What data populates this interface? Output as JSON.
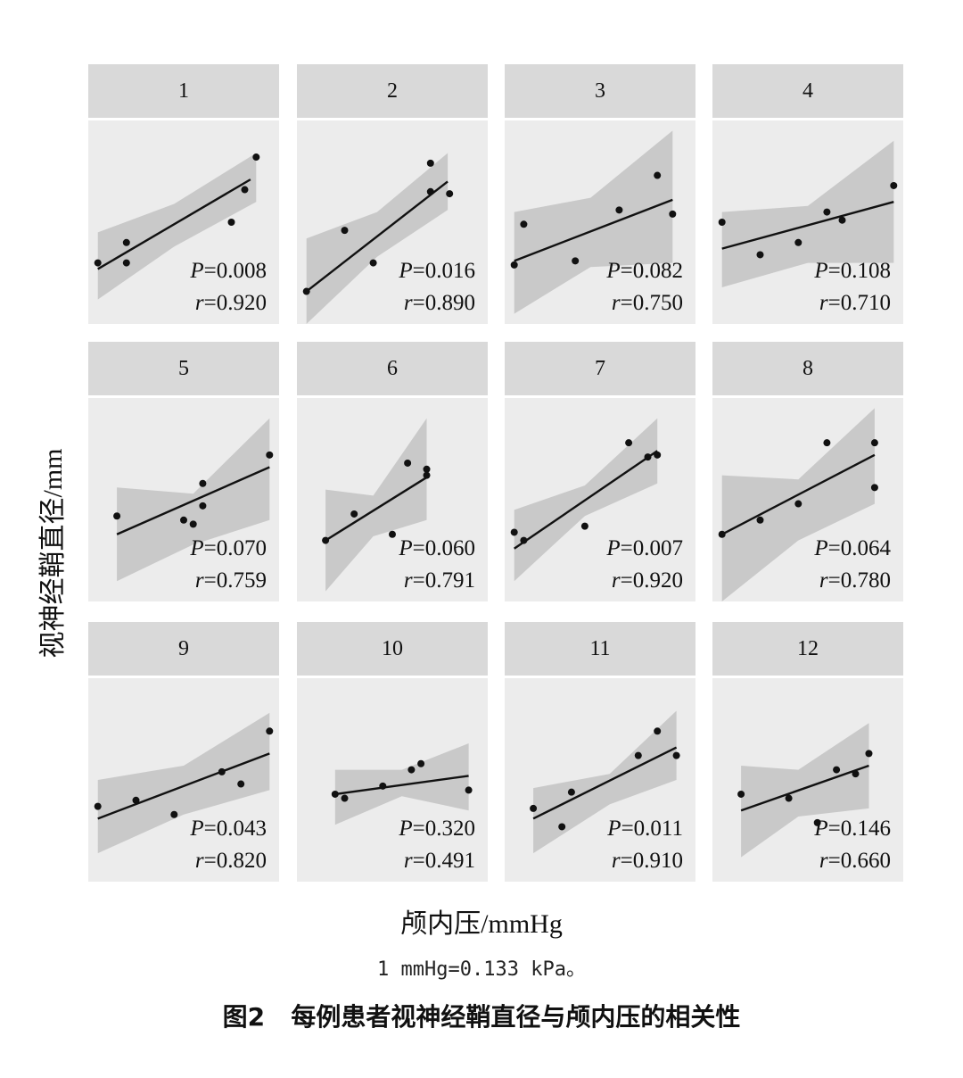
{
  "figure": {
    "ylabel": "视神经鞘直径/mm",
    "xlabel": "颅内压/mmHg",
    "unit_note": "1 mmHg=0.133 kPa。",
    "caption": "图2   每例患者视神经鞘直径与颅内压的相关性"
  },
  "chart_data": [
    {
      "type": "scatter",
      "panel": "1",
      "p_label": "P",
      "p_value": "=0.008",
      "r_label": "r",
      "r_value": "=0.920",
      "points": [
        [
          0.05,
          0.3
        ],
        [
          0.2,
          0.4
        ],
        [
          0.2,
          0.3
        ],
        [
          0.75,
          0.5
        ],
        [
          0.82,
          0.66
        ],
        [
          0.88,
          0.82
        ]
      ],
      "fit": [
        [
          0.05,
          0.27
        ],
        [
          0.85,
          0.71
        ]
      ],
      "band_upper": [
        [
          0.05,
          0.45
        ],
        [
          0.45,
          0.59
        ],
        [
          0.88,
          0.84
        ]
      ],
      "band_lower": [
        [
          0.05,
          0.12
        ],
        [
          0.45,
          0.38
        ],
        [
          0.88,
          0.6
        ]
      ]
    },
    {
      "type": "scatter",
      "panel": "2",
      "p_label": "P",
      "p_value": "=0.016",
      "r_label": "r",
      "r_value": "=0.890",
      "points": [
        [
          0.05,
          0.16
        ],
        [
          0.25,
          0.46
        ],
        [
          0.4,
          0.3
        ],
        [
          0.7,
          0.79
        ],
        [
          0.7,
          0.65
        ],
        [
          0.8,
          0.64
        ]
      ],
      "fit": [
        [
          0.05,
          0.16
        ],
        [
          0.79,
          0.7
        ]
      ],
      "band_upper": [
        [
          0.05,
          0.42
        ],
        [
          0.42,
          0.55
        ],
        [
          0.79,
          0.84
        ]
      ],
      "band_lower": [
        [
          0.05,
          0.0
        ],
        [
          0.42,
          0.33
        ],
        [
          0.79,
          0.56
        ]
      ]
    },
    {
      "type": "scatter",
      "panel": "3",
      "p_label": "P",
      "p_value": "=0.082",
      "r_label": "r",
      "r_value": "=0.750",
      "points": [
        [
          0.05,
          0.29
        ],
        [
          0.1,
          0.49
        ],
        [
          0.37,
          0.31
        ],
        [
          0.6,
          0.56
        ],
        [
          0.8,
          0.73
        ],
        [
          0.88,
          0.54
        ]
      ],
      "fit": [
        [
          0.05,
          0.31
        ],
        [
          0.88,
          0.61
        ]
      ],
      "band_upper": [
        [
          0.05,
          0.55
        ],
        [
          0.45,
          0.62
        ],
        [
          0.88,
          0.95
        ]
      ],
      "band_lower": [
        [
          0.05,
          0.05
        ],
        [
          0.45,
          0.28
        ],
        [
          0.88,
          0.3
        ]
      ]
    },
    {
      "type": "scatter",
      "panel": "4",
      "p_label": "P",
      "p_value": "=0.108",
      "r_label": "r",
      "r_value": "=0.710",
      "points": [
        [
          0.05,
          0.5
        ],
        [
          0.25,
          0.34
        ],
        [
          0.45,
          0.4
        ],
        [
          0.6,
          0.55
        ],
        [
          0.68,
          0.51
        ],
        [
          0.95,
          0.68
        ]
      ],
      "fit": [
        [
          0.05,
          0.37
        ],
        [
          0.95,
          0.6
        ]
      ],
      "band_upper": [
        [
          0.05,
          0.55
        ],
        [
          0.5,
          0.58
        ],
        [
          0.95,
          0.9
        ]
      ],
      "band_lower": [
        [
          0.05,
          0.18
        ],
        [
          0.5,
          0.3
        ],
        [
          0.95,
          0.3
        ]
      ]
    },
    {
      "type": "scatter",
      "panel": "5",
      "p_label": "P",
      "p_value": "=0.070",
      "r_label": "r",
      "r_value": "=0.759",
      "points": [
        [
          0.15,
          0.42
        ],
        [
          0.5,
          0.4
        ],
        [
          0.55,
          0.38
        ],
        [
          0.6,
          0.58
        ],
        [
          0.6,
          0.47
        ],
        [
          0.95,
          0.72
        ]
      ],
      "fit": [
        [
          0.15,
          0.33
        ],
        [
          0.95,
          0.66
        ]
      ],
      "band_upper": [
        [
          0.15,
          0.56
        ],
        [
          0.55,
          0.53
        ],
        [
          0.95,
          0.9
        ]
      ],
      "band_lower": [
        [
          0.15,
          0.1
        ],
        [
          0.55,
          0.28
        ],
        [
          0.95,
          0.4
        ]
      ]
    },
    {
      "type": "scatter",
      "panel": "6",
      "p_label": "P",
      "p_value": "=0.060",
      "r_label": "r",
      "r_value": "=0.791",
      "points": [
        [
          0.15,
          0.3
        ],
        [
          0.3,
          0.43
        ],
        [
          0.5,
          0.33
        ],
        [
          0.58,
          0.68
        ],
        [
          0.68,
          0.65
        ],
        [
          0.68,
          0.62
        ]
      ],
      "fit": [
        [
          0.15,
          0.3
        ],
        [
          0.68,
          0.61
        ]
      ],
      "band_upper": [
        [
          0.15,
          0.55
        ],
        [
          0.4,
          0.52
        ],
        [
          0.68,
          0.9
        ]
      ],
      "band_lower": [
        [
          0.15,
          0.05
        ],
        [
          0.4,
          0.32
        ],
        [
          0.68,
          0.4
        ]
      ]
    },
    {
      "type": "scatter",
      "panel": "7",
      "p_label": "P",
      "p_value": "=0.007",
      "r_label": "r",
      "r_value": "=0.920",
      "points": [
        [
          0.05,
          0.34
        ],
        [
          0.1,
          0.3
        ],
        [
          0.42,
          0.37
        ],
        [
          0.65,
          0.78
        ],
        [
          0.75,
          0.71
        ],
        [
          0.8,
          0.72
        ]
      ],
      "fit": [
        [
          0.05,
          0.26
        ],
        [
          0.8,
          0.74
        ]
      ],
      "band_upper": [
        [
          0.05,
          0.45
        ],
        [
          0.42,
          0.57
        ],
        [
          0.8,
          0.9
        ]
      ],
      "band_lower": [
        [
          0.05,
          0.1
        ],
        [
          0.42,
          0.42
        ],
        [
          0.8,
          0.58
        ]
      ]
    },
    {
      "type": "scatter",
      "panel": "8",
      "p_label": "P",
      "p_value": "=0.064",
      "r_label": "r",
      "r_value": "=0.780",
      "points": [
        [
          0.05,
          0.33
        ],
        [
          0.25,
          0.4
        ],
        [
          0.45,
          0.48
        ],
        [
          0.6,
          0.78
        ],
        [
          0.85,
          0.78
        ],
        [
          0.85,
          0.56
        ]
      ],
      "fit": [
        [
          0.05,
          0.33
        ],
        [
          0.85,
          0.72
        ]
      ],
      "band_upper": [
        [
          0.05,
          0.62
        ],
        [
          0.45,
          0.6
        ],
        [
          0.85,
          0.95
        ]
      ],
      "band_lower": [
        [
          0.05,
          0.0
        ],
        [
          0.45,
          0.3
        ],
        [
          0.85,
          0.48
        ]
      ]
    },
    {
      "type": "scatter",
      "panel": "9",
      "p_label": "P",
      "p_value": "=0.043",
      "r_label": "r",
      "r_value": "=0.820",
      "points": [
        [
          0.05,
          0.37
        ],
        [
          0.25,
          0.4
        ],
        [
          0.45,
          0.33
        ],
        [
          0.7,
          0.54
        ],
        [
          0.8,
          0.48
        ],
        [
          0.95,
          0.74
        ]
      ],
      "fit": [
        [
          0.05,
          0.31
        ],
        [
          0.95,
          0.63
        ]
      ],
      "band_upper": [
        [
          0.05,
          0.5
        ],
        [
          0.5,
          0.57
        ],
        [
          0.95,
          0.83
        ]
      ],
      "band_lower": [
        [
          0.05,
          0.14
        ],
        [
          0.5,
          0.33
        ],
        [
          0.95,
          0.45
        ]
      ]
    },
    {
      "type": "scatter",
      "panel": "10",
      "p_label": "P",
      "p_value": "=0.320",
      "r_label": "r",
      "r_value": "=0.491",
      "points": [
        [
          0.2,
          0.43
        ],
        [
          0.25,
          0.41
        ],
        [
          0.45,
          0.47
        ],
        [
          0.6,
          0.55
        ],
        [
          0.65,
          0.58
        ],
        [
          0.9,
          0.45
        ]
      ],
      "fit": [
        [
          0.2,
          0.43
        ],
        [
          0.9,
          0.52
        ]
      ],
      "band_upper": [
        [
          0.2,
          0.55
        ],
        [
          0.55,
          0.55
        ],
        [
          0.9,
          0.68
        ]
      ],
      "band_lower": [
        [
          0.2,
          0.28
        ],
        [
          0.55,
          0.42
        ],
        [
          0.9,
          0.35
        ]
      ]
    },
    {
      "type": "scatter",
      "panel": "11",
      "p_label": "P",
      "p_value": "=0.011",
      "r_label": "r",
      "r_value": "=0.910",
      "points": [
        [
          0.15,
          0.36
        ],
        [
          0.3,
          0.27
        ],
        [
          0.35,
          0.44
        ],
        [
          0.7,
          0.62
        ],
        [
          0.8,
          0.74
        ],
        [
          0.9,
          0.62
        ]
      ],
      "fit": [
        [
          0.15,
          0.31
        ],
        [
          0.9,
          0.66
        ]
      ],
      "band_upper": [
        [
          0.15,
          0.46
        ],
        [
          0.55,
          0.53
        ],
        [
          0.9,
          0.84
        ]
      ],
      "band_lower": [
        [
          0.15,
          0.14
        ],
        [
          0.55,
          0.38
        ],
        [
          0.9,
          0.5
        ]
      ]
    },
    {
      "type": "scatter",
      "panel": "12",
      "p_label": "P",
      "p_value": "=0.146",
      "r_label": "r",
      "r_value": "=0.660",
      "points": [
        [
          0.15,
          0.43
        ],
        [
          0.4,
          0.41
        ],
        [
          0.55,
          0.29
        ],
        [
          0.65,
          0.55
        ],
        [
          0.75,
          0.53
        ],
        [
          0.82,
          0.63
        ]
      ],
      "fit": [
        [
          0.15,
          0.35
        ],
        [
          0.82,
          0.57
        ]
      ],
      "band_upper": [
        [
          0.15,
          0.57
        ],
        [
          0.45,
          0.55
        ],
        [
          0.82,
          0.78
        ]
      ],
      "band_lower": [
        [
          0.15,
          0.12
        ],
        [
          0.45,
          0.32
        ],
        [
          0.82,
          0.36
        ]
      ]
    }
  ]
}
